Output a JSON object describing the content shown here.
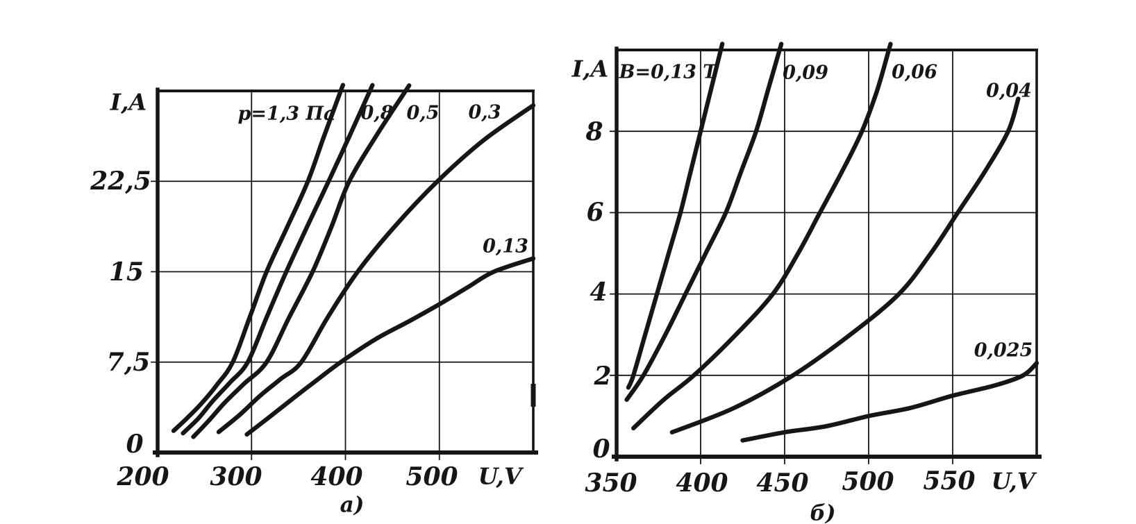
{
  "page": {
    "background": "#ffffff",
    "ink": "#161616"
  },
  "chart_data": [
    {
      "type": "line",
      "id": "a",
      "caption": "а)",
      "y_axis_label": "I,A",
      "x_axis_label": "U,V",
      "xlim": [
        200,
        600
      ],
      "ylim": [
        0,
        30
      ],
      "grid": true,
      "legend_position": "labels-on-curves",
      "x_gridlines": [
        300,
        400,
        500
      ],
      "y_gridlines": [
        7.5,
        15,
        22.5
      ],
      "x_ticks": [
        {
          "value": 200,
          "label": "200"
        },
        {
          "value": 300,
          "label": "300"
        },
        {
          "value": 400,
          "label": "400"
        },
        {
          "value": 500,
          "label": "500"
        }
      ],
      "y_ticks": [
        {
          "value": 0,
          "label": "0"
        },
        {
          "value": 7.5,
          "label": "7,5"
        },
        {
          "value": 15,
          "label": "15"
        },
        {
          "value": 22.5,
          "label": "22,5"
        }
      ],
      "series": [
        {
          "name": "p-1.3-Pa",
          "label": "p=1,3 Па",
          "points": [
            [
              217,
              1.8
            ],
            [
              232,
              2.9
            ],
            [
              247,
              4.1
            ],
            [
              263,
              5.6
            ],
            [
              280,
              7.5
            ],
            [
              298,
              11.2
            ],
            [
              316,
              15
            ],
            [
              338,
              18.7
            ],
            [
              360,
              22.5
            ],
            [
              377,
              26.2
            ],
            [
              395,
              30
            ]
          ]
        },
        {
          "name": "p-0.8-Pa",
          "label": "0,8",
          "points": [
            [
              227,
              1.6
            ],
            [
              243,
              2.8
            ],
            [
              259,
              4.3
            ],
            [
              277,
              5.8
            ],
            [
              296,
              7.5
            ],
            [
              316,
              11.2
            ],
            [
              337,
              15
            ],
            [
              359,
              18.7
            ],
            [
              382,
              22.5
            ],
            [
              404,
              26.2
            ],
            [
              426,
              30
            ]
          ]
        },
        {
          "name": "p-0.5-Pa",
          "label": "0,5",
          "points": [
            [
              238,
              1.3
            ],
            [
              254,
              2.6
            ],
            [
              271,
              4.1
            ],
            [
              292,
              5.7
            ],
            [
              316,
              7.5
            ],
            [
              340,
              11.2
            ],
            [
              365,
              15
            ],
            [
              385,
              18.7
            ],
            [
              404,
              22.5
            ],
            [
              433,
              26.3
            ],
            [
              464,
              30
            ]
          ]
        },
        {
          "name": "p-0.3-Pa",
          "label": "0,3",
          "points": [
            [
              265,
              1.7
            ],
            [
              287,
              3.1
            ],
            [
              309,
              4.7
            ],
            [
              331,
              6.1
            ],
            [
              353,
              7.5
            ],
            [
              381,
              11.2
            ],
            [
              413,
              15
            ],
            [
              453,
              18.8
            ],
            [
              498,
              22.5
            ],
            [
              547,
              25.9
            ],
            [
              600,
              28.8
            ]
          ]
        },
        {
          "name": "p-0.13-Pa",
          "label": "0,13",
          "points": [
            [
              295,
              1.5
            ],
            [
              320,
              3.0
            ],
            [
              346,
              4.6
            ],
            [
              371,
              6.1
            ],
            [
              395,
              7.5
            ],
            [
              432,
              9.4
            ],
            [
              468,
              10.9
            ],
            [
              500,
              12.3
            ],
            [
              530,
              13.7
            ],
            [
              558,
              15
            ],
            [
              600,
              16.1
            ]
          ]
        }
      ]
    },
    {
      "type": "line",
      "id": "b",
      "caption": "б)",
      "y_axis_label": "I,A",
      "x_axis_label": "U,V",
      "xlim": [
        350,
        600
      ],
      "ylim": [
        0,
        10
      ],
      "grid": true,
      "legend_position": "labels-on-curves",
      "x_gridlines": [
        400,
        450,
        500,
        550
      ],
      "y_gridlines": [
        2,
        4,
        6,
        8
      ],
      "x_ticks": [
        {
          "value": 350,
          "label": "350"
        },
        {
          "value": 400,
          "label": "400"
        },
        {
          "value": 450,
          "label": "450"
        },
        {
          "value": 500,
          "label": "500"
        },
        {
          "value": 550,
          "label": "550"
        }
      ],
      "y_ticks": [
        {
          "value": 0,
          "label": "0"
        },
        {
          "value": 2,
          "label": "2"
        },
        {
          "value": 4,
          "label": "4"
        },
        {
          "value": 6,
          "label": "6"
        },
        {
          "value": 8,
          "label": "8"
        }
      ],
      "series": [
        {
          "name": "B-0.13-T",
          "label": "B=0,13 T",
          "points": [
            [
              357,
              1.7
            ],
            [
              360,
              2
            ],
            [
              367,
              3
            ],
            [
              374,
              4
            ],
            [
              381,
              5
            ],
            [
              388,
              6
            ],
            [
              394,
              7
            ],
            [
              400,
              8
            ],
            [
              406,
              9
            ],
            [
              412,
              10
            ]
          ]
        },
        {
          "name": "B-0.09-T",
          "label": "0,09",
          "points": [
            [
              356,
              1.4
            ],
            [
              366,
              2
            ],
            [
              379,
              3
            ],
            [
              391,
              4
            ],
            [
              403,
              5
            ],
            [
              415,
              6
            ],
            [
              424,
              7
            ],
            [
              433,
              8
            ],
            [
              440,
              9
            ],
            [
              447,
              10
            ]
          ]
        },
        {
          "name": "B-0.06-T",
          "label": "0,06",
          "points": [
            [
              360,
              0.7
            ],
            [
              378,
              1.4
            ],
            [
              396,
              2
            ],
            [
              421,
              3
            ],
            [
              443,
              4
            ],
            [
              458,
              5
            ],
            [
              471,
              6
            ],
            [
              484,
              7
            ],
            [
              496,
              8
            ],
            [
              505,
              9
            ],
            [
              512,
              10
            ]
          ]
        },
        {
          "name": "B-0.04-T",
          "label": "0,04",
          "points": [
            [
              383,
              0.6
            ],
            [
              420,
              1.2
            ],
            [
              455,
              2
            ],
            [
              489,
              3
            ],
            [
              518,
              4
            ],
            [
              537,
              5
            ],
            [
              553,
              6
            ],
            [
              569,
              7
            ],
            [
              583,
              8
            ],
            [
              589,
              8.8
            ]
          ]
        },
        {
          "name": "B-0.025-T",
          "label": "0,025",
          "points": [
            [
              425,
              0.4
            ],
            [
              450,
              0.6
            ],
            [
              475,
              0.75
            ],
            [
              500,
              1.0
            ],
            [
              525,
              1.2
            ],
            [
              550,
              1.5
            ],
            [
              575,
              1.75
            ],
            [
              592,
              2
            ],
            [
              600,
              2.3
            ]
          ]
        }
      ]
    }
  ]
}
